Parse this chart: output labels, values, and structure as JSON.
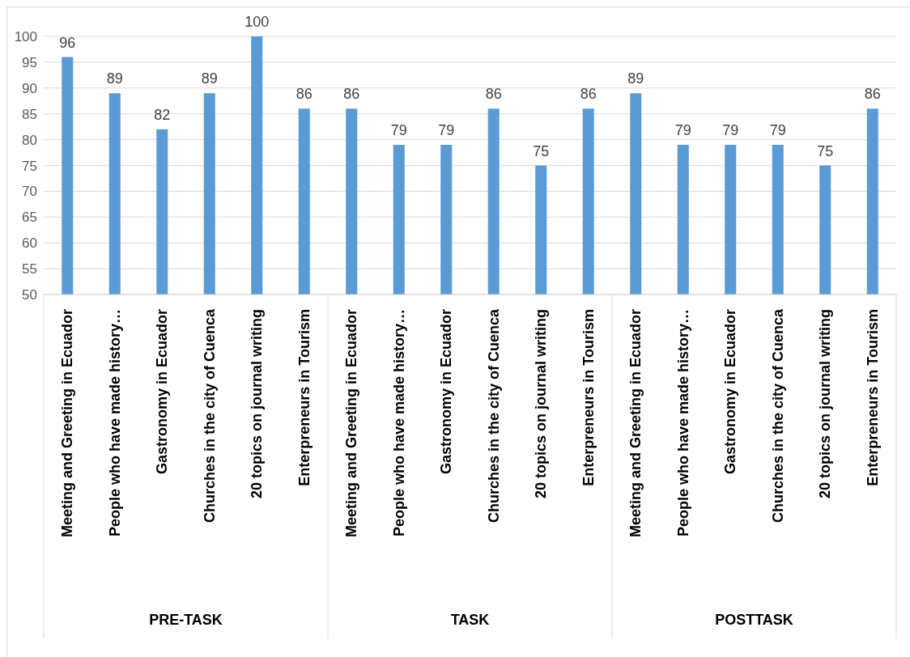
{
  "chart_data": {
    "type": "bar",
    "categories": [
      "Meeting and Greeting in Ecuador",
      "People who have made history…",
      "Gastronomy in Ecuador",
      "Churches in the city of Cuenca",
      "20 topics on journal writing",
      "Enterpreneurs in Tourism",
      "Meeting and Greeting in Ecuador",
      "People who have made history…",
      "Gastronomy in Ecuador",
      "Churches in the city of Cuenca",
      "20 topics on journal writing",
      "Enterpreneurs in Tourism",
      "Meeting and Greeting in Ecuador",
      "People who have made history…",
      "Gastronomy in Ecuador",
      "Churches in the city of Cuenca",
      "20 topics on journal writing",
      "Enterpreneurs in Tourism"
    ],
    "values": [
      96,
      89,
      82,
      89,
      100,
      86,
      86,
      79,
      79,
      86,
      75,
      86,
      89,
      79,
      79,
      79,
      75,
      86
    ],
    "color": "#5b9bd5",
    "ylim": [
      50,
      100
    ],
    "yticks": [
      50,
      55,
      60,
      65,
      70,
      75,
      80,
      85,
      90,
      95,
      100
    ],
    "grid": "y",
    "data_labels": true,
    "annotations": [
      "PRE-TASK",
      "TASK",
      "POSTTASK"
    ]
  }
}
